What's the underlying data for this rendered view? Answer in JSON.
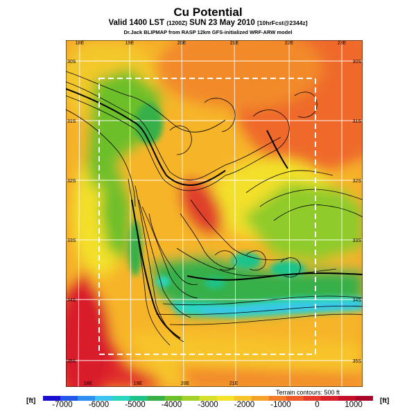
{
  "title": "Cu Potential",
  "subtitle": {
    "prefix": "Valid 1400 LST",
    "utc": "(1200Z)",
    "date": "SUN 23 May 2010",
    "forecast": "[10hrFcst@2344z]"
  },
  "credit": "Dr.Jack BLIPMAP from RASP 12km GFS-initialized WRF-ARW model",
  "terrain_label": "Terrain contours: 500 ft",
  "units": {
    "left": "[ft]",
    "right": "[ft]"
  },
  "map": {
    "lon_labels_top": [
      "18E",
      "19E",
      "20E",
      "21E",
      "22E",
      "23E"
    ],
    "lon_labels_bottom": [
      "18E",
      "19E",
      "20E",
      "21E"
    ],
    "lat_labels_left": [
      "30S",
      "31S",
      "32S",
      "33S",
      "34S",
      "35S"
    ],
    "lat_labels_right": [
      "30S",
      "31S",
      "32S",
      "33S",
      "34S",
      "35S"
    ]
  },
  "colorbar": {
    "ticks": [
      "-7000",
      "-6000",
      "-5000",
      "-4000",
      "-3000",
      "-2000",
      "-1000",
      "0",
      "1000"
    ],
    "colors": [
      "#1a0fcf",
      "#2256e8",
      "#2e8ef2",
      "#3cc3f0",
      "#2ad6c0",
      "#1ec38a",
      "#38b048",
      "#6dbf2c",
      "#a2d22a",
      "#d4e02a",
      "#f3e32a",
      "#f7c42a",
      "#f5a22a",
      "#f27c2a",
      "#ef5a2a",
      "#e63a2a",
      "#d8222a",
      "#c40f2a",
      "#a8072a"
    ]
  }
}
